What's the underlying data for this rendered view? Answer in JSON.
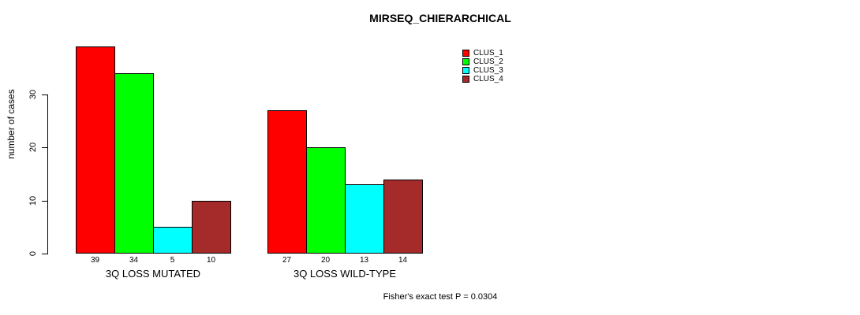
{
  "chart_data": {
    "type": "bar",
    "title": "MIRSEQ_CHIERARCHICAL",
    "ylabel": "number of cases",
    "xlabel": "",
    "yticks": [
      "0",
      "10",
      "20",
      "30"
    ],
    "ytick_values": [
      0,
      10,
      20,
      30
    ],
    "ylim": [
      0,
      40
    ],
    "grid": false,
    "legend_position": "top-right",
    "series_names": [
      "CLUS_1",
      "CLUS_2",
      "CLUS_3",
      "CLUS_4"
    ],
    "colors": [
      "#FF0000",
      "#00FF00",
      "#00FFFF",
      "#A52A2A"
    ],
    "groups": [
      {
        "label": "3Q LOSS MUTATED",
        "values": [
          39,
          34,
          5,
          10
        ]
      },
      {
        "label": "3Q LOSS WILD-TYPE",
        "values": [
          27,
          20,
          13,
          14
        ]
      }
    ],
    "annotation": "Fisher's exact test P = 0.0304"
  }
}
